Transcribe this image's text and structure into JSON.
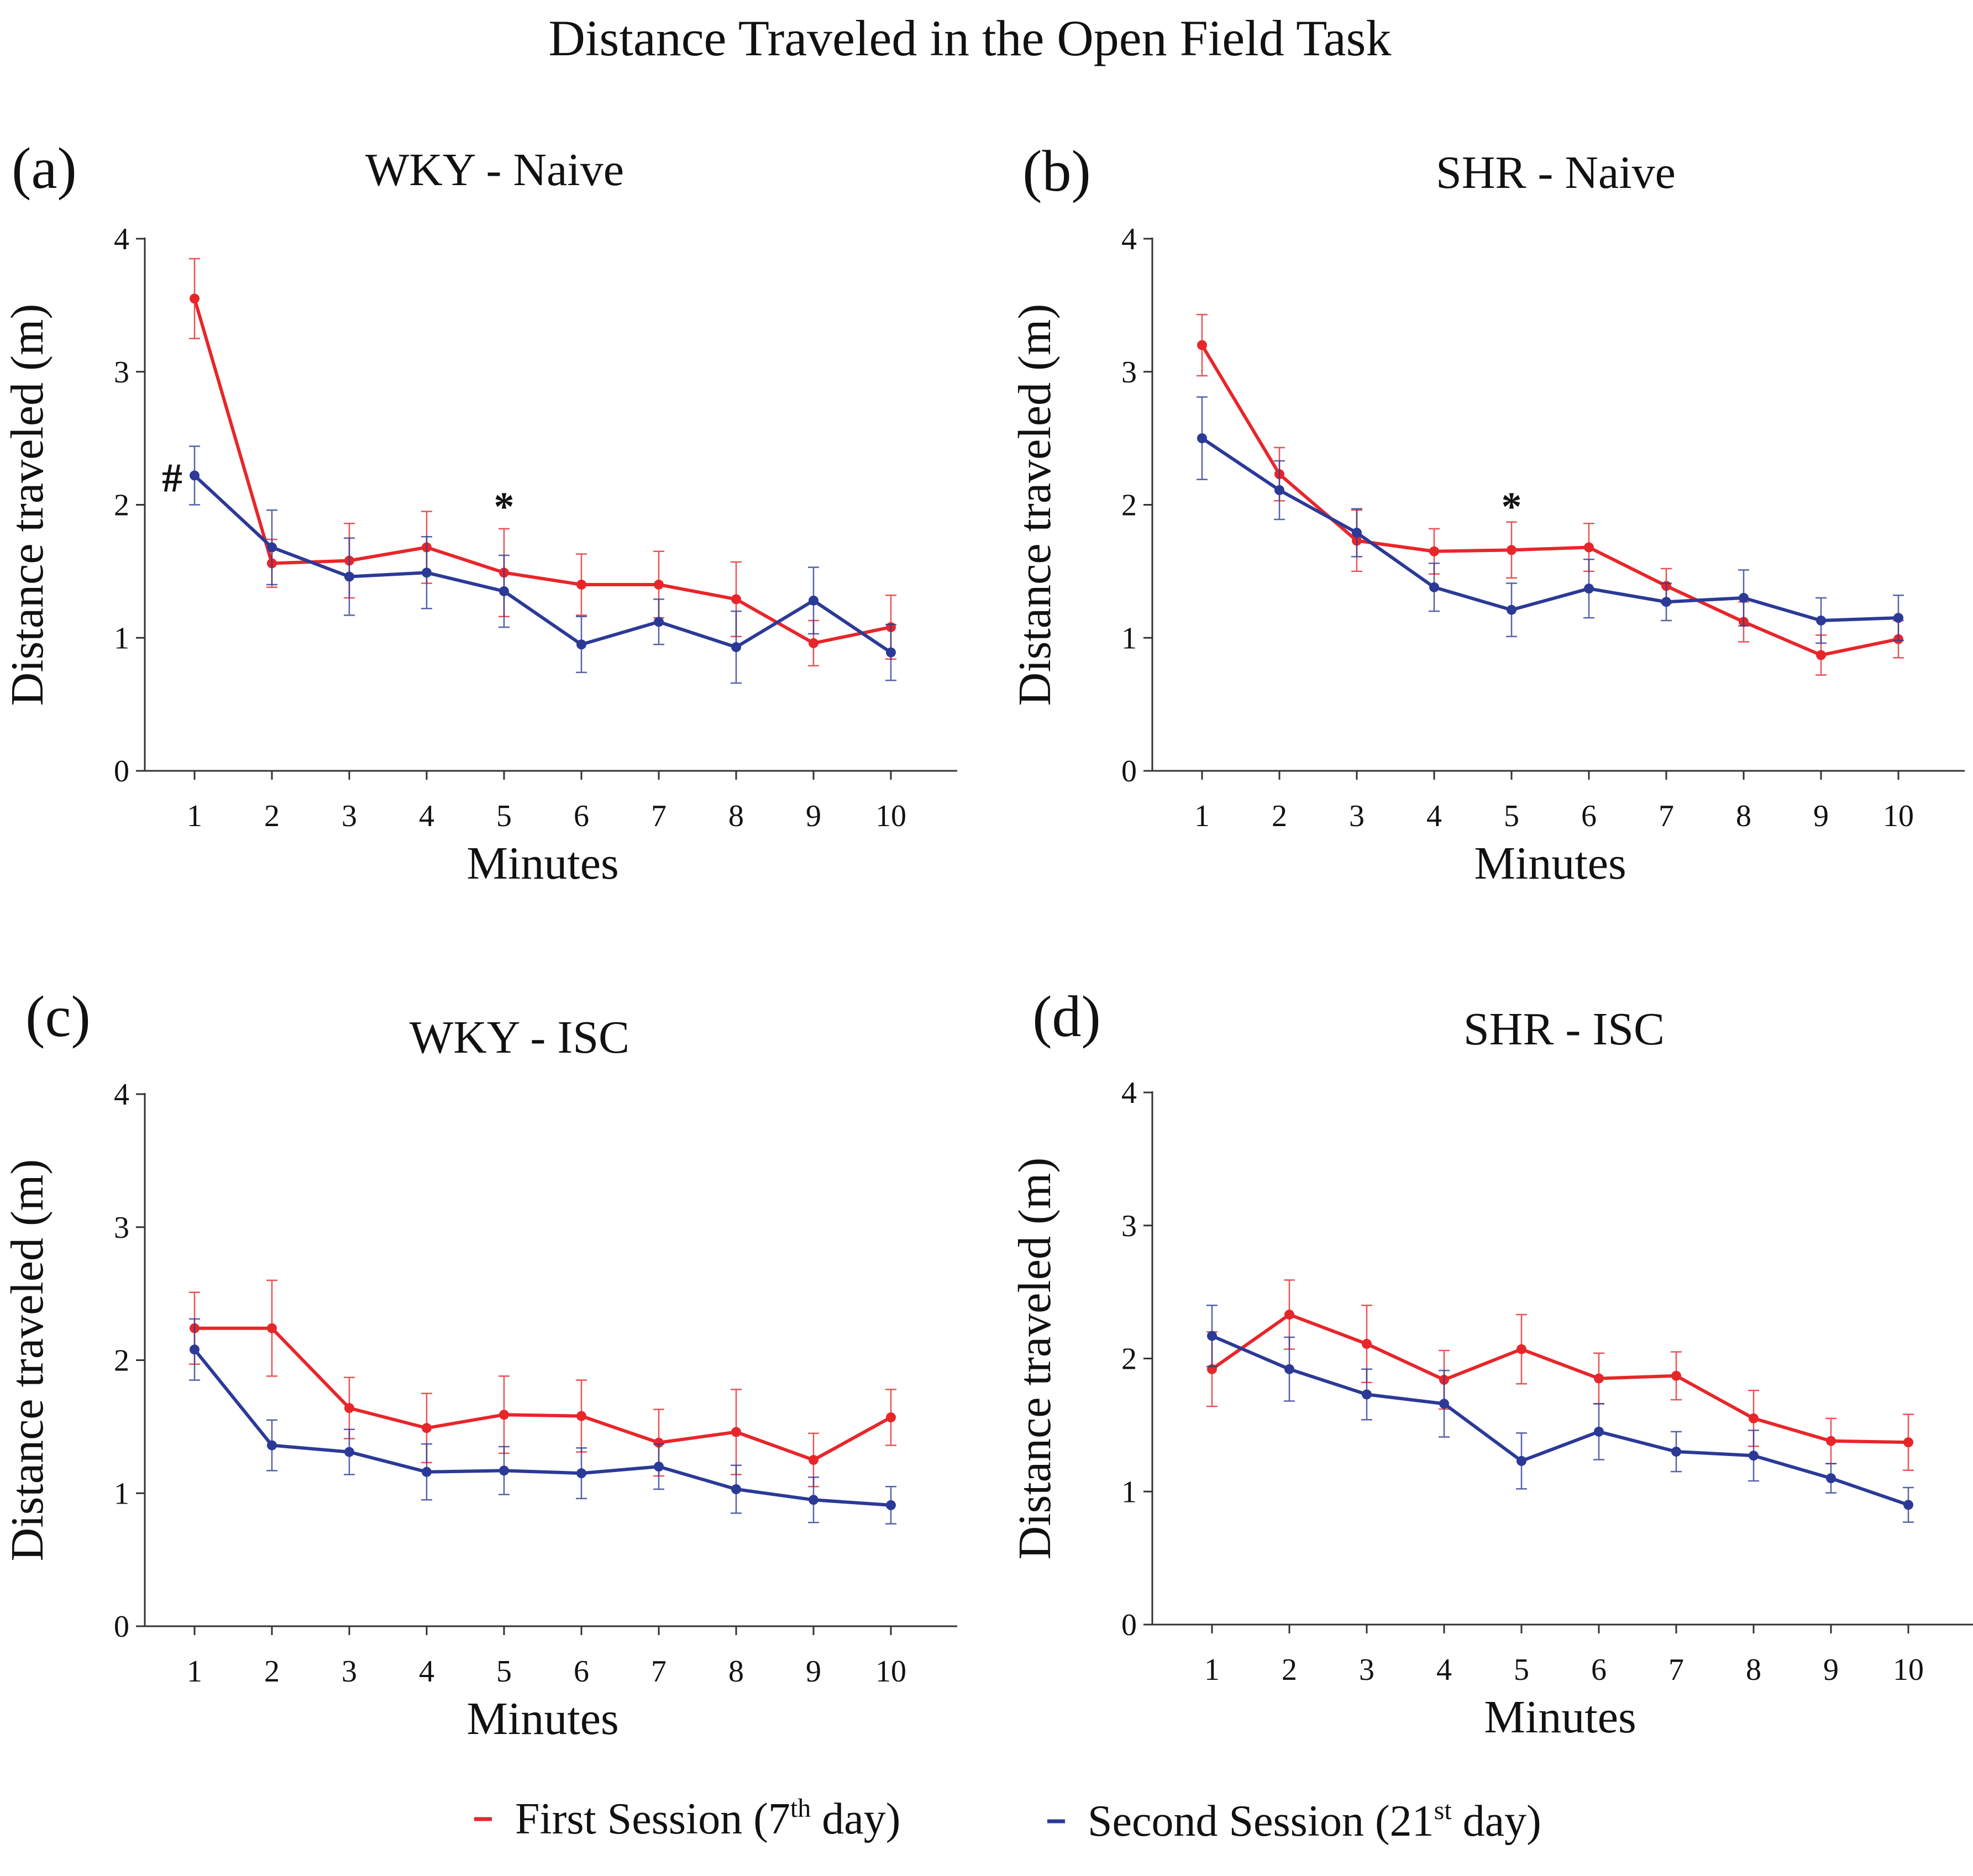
{
  "figure_title": "Distance Traveled in the Open Field Task",
  "colors": {
    "first_session": "#e8262a",
    "second_session": "#2b3a97",
    "axis": "#333333"
  },
  "legend": [
    {
      "key": "first",
      "label_pre": "First Session  (7",
      "sup": "th",
      "label_post": " day)"
    },
    {
      "key": "second",
      "label_pre": "Second Session  (21",
      "sup": "st",
      "label_post": " day)"
    }
  ],
  "chart_data": [
    {
      "panel": "(a)",
      "title": "WKY - Naive",
      "type": "line",
      "xlabel": "Minutes",
      "ylabel": "Distance  traveled (m)",
      "categories": [
        1,
        2,
        3,
        4,
        5,
        6,
        7,
        8,
        9,
        10
      ],
      "y_ticks": [
        0,
        1,
        2,
        3,
        4
      ],
      "ylim": [
        0,
        4
      ],
      "series": [
        {
          "name": "First Session (7th day)",
          "key": "first",
          "values": [
            3.55,
            1.56,
            1.58,
            1.68,
            1.49,
            1.4,
            1.4,
            1.29,
            0.96,
            1.08
          ],
          "errors": [
            0.3,
            0.18,
            0.28,
            0.27,
            0.33,
            0.23,
            0.25,
            0.28,
            0.17,
            0.24
          ]
        },
        {
          "name": "Second Session (21st day)",
          "key": "second",
          "values": [
            2.22,
            1.68,
            1.46,
            1.49,
            1.35,
            0.95,
            1.12,
            0.93,
            1.28,
            0.89
          ],
          "errors": [
            0.22,
            0.28,
            0.29,
            0.27,
            0.27,
            0.21,
            0.17,
            0.27,
            0.25,
            0.21
          ]
        }
      ],
      "annotations": [
        {
          "text": "#",
          "x": 1,
          "y": 2.2,
          "position": "left"
        },
        {
          "text": "*",
          "x": 5,
          "y": 2.0,
          "position": "above"
        }
      ]
    },
    {
      "panel": "(b)",
      "title": "SHR - Naive",
      "type": "line",
      "xlabel": "Minutes",
      "ylabel": "Distance  traveled (m)",
      "categories": [
        1,
        2,
        3,
        4,
        5,
        6,
        7,
        8,
        9,
        10
      ],
      "y_ticks": [
        0,
        1,
        2,
        3,
        4
      ],
      "ylim": [
        0,
        4
      ],
      "series": [
        {
          "name": "First Session (7th day)",
          "key": "first",
          "values": [
            3.2,
            2.23,
            1.73,
            1.65,
            1.66,
            1.68,
            1.39,
            1.12,
            0.87,
            0.99
          ],
          "errors": [
            0.23,
            0.2,
            0.23,
            0.17,
            0.21,
            0.18,
            0.13,
            0.15,
            0.15,
            0.14
          ]
        },
        {
          "name": "Second Session (21st day)",
          "key": "second",
          "values": [
            2.5,
            2.11,
            1.79,
            1.38,
            1.21,
            1.37,
            1.27,
            1.3,
            1.13,
            1.15
          ],
          "errors": [
            0.31,
            0.22,
            0.18,
            0.18,
            0.2,
            0.22,
            0.14,
            0.21,
            0.17,
            0.17
          ]
        }
      ],
      "annotations": [
        {
          "text": "*",
          "x": 5,
          "y": 2.0,
          "position": "above"
        }
      ]
    },
    {
      "panel": "(c)",
      "title": "WKY - ISC",
      "type": "line",
      "xlabel": "Minutes",
      "ylabel": "Distance  traveled (m)",
      "categories": [
        1,
        2,
        3,
        4,
        5,
        6,
        7,
        8,
        9,
        10
      ],
      "y_ticks": [
        0,
        1,
        2,
        3,
        4
      ],
      "ylim": [
        0,
        4
      ],
      "series": [
        {
          "name": "First Session (7th day)",
          "key": "first",
          "values": [
            2.24,
            2.24,
            1.64,
            1.49,
            1.59,
            1.58,
            1.38,
            1.46,
            1.25,
            1.57
          ],
          "errors": [
            0.27,
            0.36,
            0.23,
            0.26,
            0.29,
            0.27,
            0.25,
            0.32,
            0.2,
            0.21
          ]
        },
        {
          "name": "Second Session (21st day)",
          "key": "second",
          "values": [
            2.08,
            1.36,
            1.31,
            1.16,
            1.17,
            1.15,
            1.2,
            1.03,
            0.95,
            0.91
          ],
          "errors": [
            0.23,
            0.19,
            0.17,
            0.21,
            0.18,
            0.19,
            0.17,
            0.18,
            0.17,
            0.14
          ]
        }
      ],
      "annotations": []
    },
    {
      "panel": "(d)",
      "title": "SHR - ISC",
      "type": "line",
      "xlabel": "Minutes",
      "ylabel": "Distance  traveled (m)",
      "categories": [
        1,
        2,
        3,
        4,
        5,
        6,
        7,
        8,
        9,
        10
      ],
      "y_ticks": [
        0,
        1,
        2,
        3,
        4
      ],
      "ylim": [
        0,
        4
      ],
      "series": [
        {
          "name": "First Session (7th day)",
          "key": "first",
          "values": [
            1.92,
            2.33,
            2.11,
            1.84,
            2.07,
            1.85,
            1.87,
            1.55,
            1.38,
            1.37
          ],
          "errors": [
            0.28,
            0.26,
            0.29,
            0.22,
            0.26,
            0.19,
            0.18,
            0.21,
            0.17,
            0.21
          ]
        },
        {
          "name": "Second Session (21st day)",
          "key": "second",
          "values": [
            2.17,
            1.92,
            1.73,
            1.66,
            1.23,
            1.45,
            1.3,
            1.27,
            1.1,
            0.9
          ],
          "errors": [
            0.23,
            0.24,
            0.19,
            0.25,
            0.21,
            0.21,
            0.15,
            0.19,
            0.11,
            0.13
          ]
        }
      ],
      "annotations": []
    }
  ]
}
